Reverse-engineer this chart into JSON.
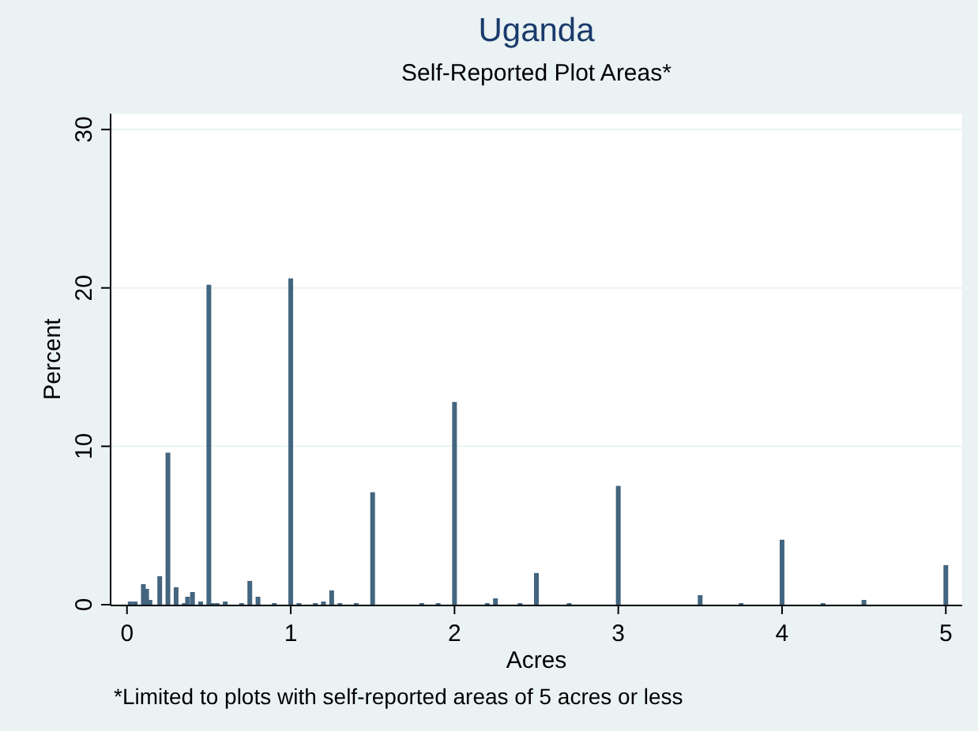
{
  "chart_data": {
    "type": "bar",
    "title": "Uganda",
    "subtitle": "Self-Reported Plot Areas*",
    "xlabel": "Acres",
    "ylabel": "Percent",
    "annotations": [
      "*Limited to plots with self-reported areas of 5 acres or less"
    ],
    "x": [
      0.02,
      0.05,
      0.1,
      0.12,
      0.14,
      0.2,
      0.25,
      0.3,
      0.35,
      0.37,
      0.4,
      0.45,
      0.5,
      0.52,
      0.55,
      0.6,
      0.7,
      0.75,
      0.8,
      0.9,
      1.0,
      1.05,
      1.15,
      1.2,
      1.25,
      1.3,
      1.4,
      1.5,
      1.8,
      1.9,
      2.0,
      2.2,
      2.25,
      2.4,
      2.5,
      2.7,
      3.0,
      3.5,
      3.75,
      4.0,
      4.25,
      4.5,
      5.0
    ],
    "values": [
      0.2,
      0.2,
      1.3,
      1.0,
      0.3,
      1.8,
      9.6,
      1.1,
      0.1,
      0.5,
      0.8,
      0.2,
      20.2,
      0.1,
      0.1,
      0.2,
      0.1,
      1.5,
      0.5,
      0.1,
      20.6,
      0.1,
      0.1,
      0.2,
      0.9,
      0.1,
      0.1,
      7.1,
      0.1,
      0.1,
      12.8,
      0.1,
      0.4,
      0.1,
      2.0,
      0.1,
      7.5,
      0.6,
      0.1,
      4.1,
      0.1,
      0.3,
      2.5
    ],
    "color": "#43657f",
    "xlim": [
      -0.1,
      5.1
    ],
    "ylim": [
      0,
      31
    ],
    "xticks": [
      0,
      1,
      2,
      3,
      4,
      5
    ],
    "yticks": [
      0,
      10,
      20,
      30
    ],
    "grid": "y"
  }
}
